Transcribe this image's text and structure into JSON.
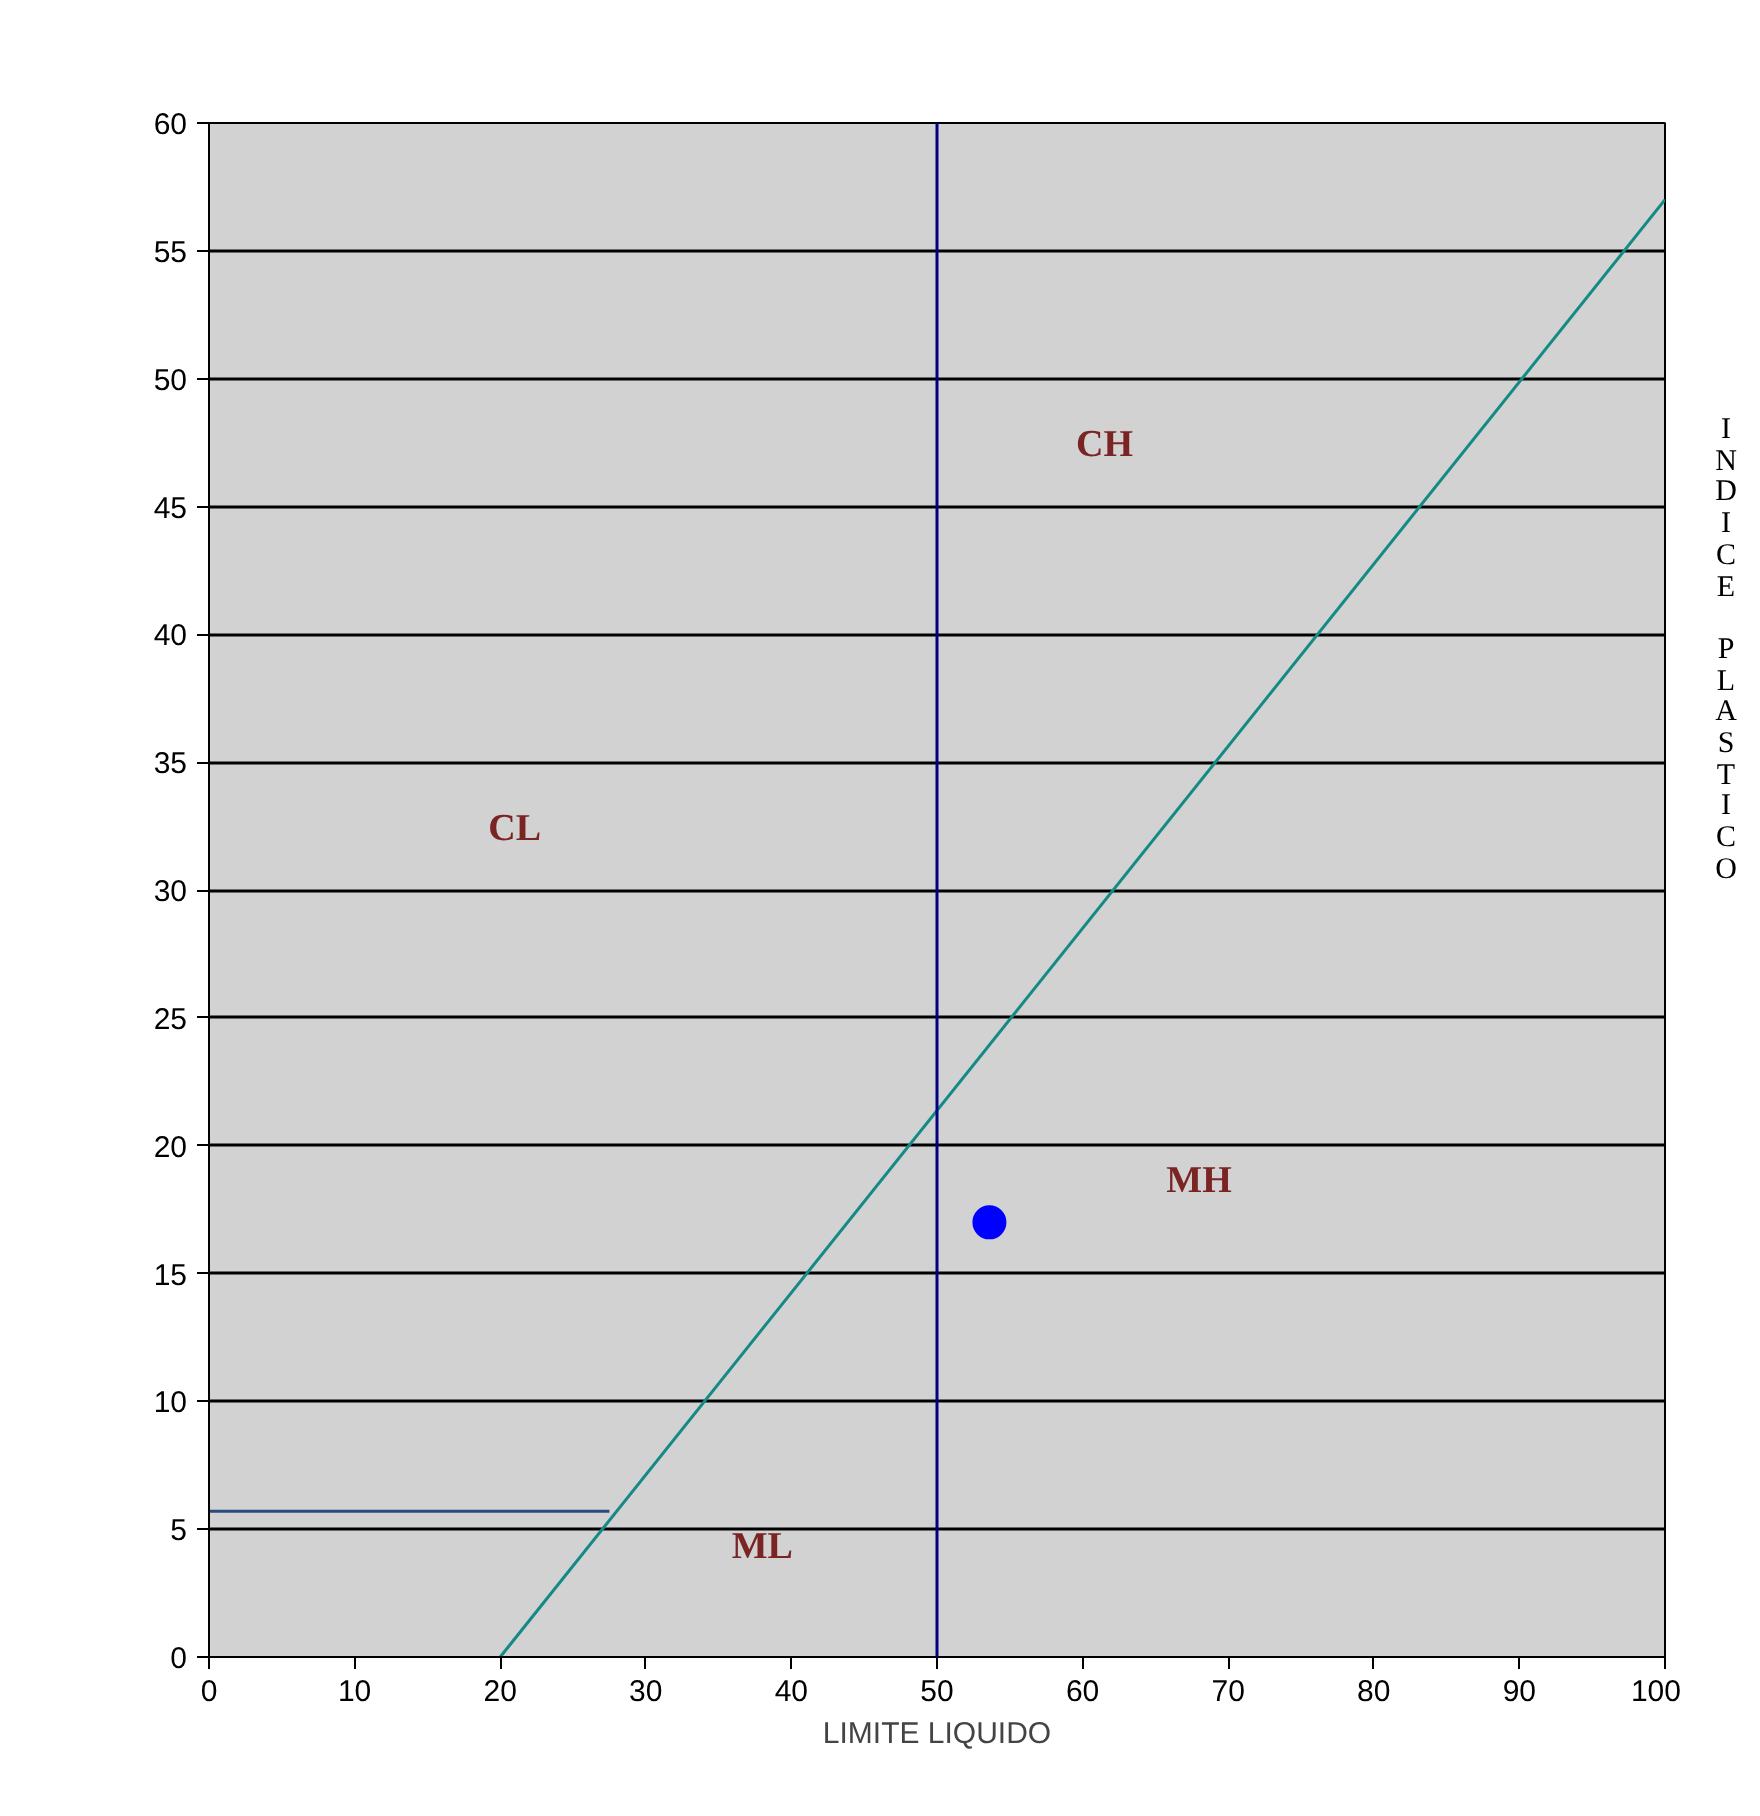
{
  "chart_data": {
    "type": "line",
    "xlabel": "LIMITE LIQUIDO",
    "ylabel": "INDICE PLASTICO",
    "xlim": [
      0,
      100
    ],
    "xticks": [
      0,
      10,
      20,
      30,
      40,
      50,
      60,
      70,
      80,
      90,
      100
    ],
    "ylim": [
      0,
      60
    ],
    "yticks": [
      0,
      5,
      10,
      15,
      20,
      25,
      30,
      35,
      40,
      45,
      50,
      55,
      60
    ],
    "grid": "y",
    "line_style": "solid",
    "series": [
      {
        "color": "#138a84",
        "x": [
          20,
          100
        ],
        "values": [
          0,
          57
        ]
      },
      {
        "color": "#2b4a80",
        "x": [
          0,
          27.5
        ],
        "values": [
          5.7,
          5.7
        ]
      },
      {
        "type": "scatter",
        "color": "#0000ff",
        "marker": "circle",
        "x": [
          53.6
        ],
        "values": [
          17
        ]
      }
    ],
    "ref_lines": [
      {
        "axis": "x",
        "value": 50,
        "label": null,
        "color": "#000080"
      }
    ],
    "annotations": [
      "CH",
      "CL",
      "MH",
      "ML"
    ]
  }
}
